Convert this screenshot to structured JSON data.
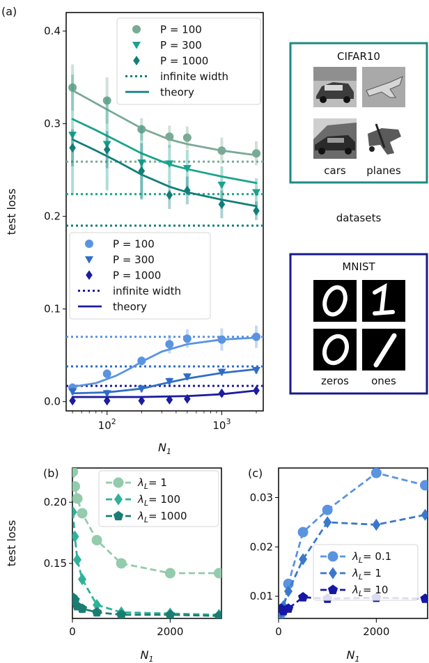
{
  "panel_a": {
    "label": "(a)",
    "chart_data": {
      "type": "line",
      "xlabel_base": "N",
      "xlabel_sub": "1",
      "ylabel": "test loss",
      "xscale": "log",
      "xlim": [
        44,
        2300
      ],
      "ylim": [
        -0.01,
        0.42
      ],
      "yticks": [
        "0.0",
        "0.1",
        "0.2",
        "0.3",
        "0.4"
      ],
      "ytick_values": [
        0,
        0.1,
        0.2,
        0.3,
        0.4
      ],
      "xticks": [
        {
          "value": 100,
          "base": "10",
          "exp": "2"
        },
        {
          "value": 1000,
          "base": "10",
          "exp": "3"
        }
      ],
      "x": [
        50,
        100,
        200,
        350,
        500,
        1000,
        2000
      ],
      "cifar_series": [
        {
          "name": "P = 100",
          "marker": "circle",
          "color": "#7aa995",
          "values": [
            0.339,
            0.325,
            0.294,
            0.286,
            0.285,
            0.271,
            0.268
          ],
          "err": [
            0.025,
            0.025,
            0.012,
            0.012,
            0.012,
            0.014,
            0.013
          ]
        },
        {
          "name": "P = 300",
          "marker": "triangle-down",
          "color": "#1aa38c",
          "values": [
            0.288,
            0.278,
            0.258,
            0.257,
            0.252,
            0.234,
            0.226
          ],
          "err": [
            0.065,
            0.05,
            0.04,
            0.02,
            0.02,
            0.02,
            0.015
          ]
        },
        {
          "name": "P = 1000",
          "marker": "diamond",
          "color": "#117e7a",
          "values": [
            0.274,
            0.272,
            0.249,
            0.223,
            0.228,
            0.213,
            0.206
          ],
          "err": [
            0.02,
            0.02,
            0.03,
            0.015,
            0.015,
            0.015,
            0.01
          ]
        }
      ],
      "cifar_infinite": [
        0.259,
        0.224,
        0.19
      ],
      "cifar_theory": [
        {
          "x": [
            50,
            80,
            120,
            200,
            350,
            500,
            1000,
            2000
          ],
          "y": [
            0.336,
            0.322,
            0.31,
            0.295,
            0.283,
            0.278,
            0.271,
            0.266
          ]
        },
        {
          "x": [
            50,
            80,
            120,
            200,
            350,
            500,
            1000,
            2000
          ],
          "y": [
            0.305,
            0.293,
            0.282,
            0.268,
            0.256,
            0.251,
            0.243,
            0.236
          ]
        },
        {
          "x": [
            50,
            80,
            120,
            200,
            350,
            500,
            1000,
            2000
          ],
          "y": [
            0.283,
            0.271,
            0.26,
            0.245,
            0.232,
            0.226,
            0.218,
            0.211
          ]
        }
      ],
      "mnist_series": [
        {
          "name": "P = 100",
          "marker": "circle",
          "color": "#5a94e0",
          "values": [
            0.015,
            0.03,
            0.044,
            0.062,
            0.068,
            0.067,
            0.07
          ],
          "err": [
            0.005,
            0.005,
            0.005,
            0.01,
            0.01,
            0.012,
            0.012
          ]
        },
        {
          "name": "P = 300",
          "marker": "triangle-down",
          "color": "#2f6dc6",
          "values": [
            0.011,
            0.009,
            0.014,
            0.022,
            0.027,
            0.032,
            0.034
          ],
          "err": [
            0.004,
            0.004,
            0.004,
            0.004,
            0.004,
            0.004,
            0.004
          ]
        },
        {
          "name": "P = 1000",
          "marker": "diamond",
          "color": "#1c1c9e",
          "values": [
            0.001,
            0.001,
            0.001,
            0.002,
            0.003,
            0.009,
            0.012
          ],
          "err": [
            0.003,
            0.003,
            0.003,
            0.003,
            0.003,
            0.004,
            0.004
          ]
        }
      ],
      "mnist_infinite": [
        0.07,
        0.038,
        0.017
      ],
      "mnist_theory": [
        {
          "x": [
            50,
            80,
            120,
            160,
            200,
            300,
            500,
            1000,
            2000
          ],
          "y": [
            0.016,
            0.02,
            0.028,
            0.036,
            0.043,
            0.054,
            0.062,
            0.067,
            0.069
          ]
        },
        {
          "x": [
            50,
            100,
            200,
            300,
            500,
            1000,
            2000
          ],
          "y": [
            0.009,
            0.01,
            0.014,
            0.019,
            0.025,
            0.031,
            0.035
          ]
        },
        {
          "x": [
            50,
            100,
            200,
            500,
            1000,
            2000
          ],
          "y": [
            0.005,
            0.005,
            0.005,
            0.006,
            0.008,
            0.012
          ]
        }
      ],
      "legend_cifar": {
        "items": [
          "P = 100",
          "P = 300",
          "P = 1000",
          "infinite width",
          "theory"
        ],
        "placement": "top-right"
      },
      "legend_mnist": {
        "items": [
          "P = 100",
          "P = 300",
          "P = 1000",
          "infinite width",
          "theory"
        ],
        "placement": "center-left"
      }
    }
  },
  "datasets": {
    "label": "datasets",
    "cifar": {
      "title": "CIFAR10",
      "label_left": "cars",
      "label_right": "planes",
      "border_color": "#1e8a80"
    },
    "mnist": {
      "title": "MNIST",
      "label_left": "zeros",
      "label_right": "ones",
      "border_color": "#1a1a8c"
    }
  },
  "panel_b": {
    "label": "(b)",
    "chart_data": {
      "type": "line",
      "xlabel_base": "N",
      "xlabel_sub": "1",
      "ylabel": "test loss",
      "xlim": [
        0,
        3050
      ],
      "ylim": [
        0.105,
        0.228
      ],
      "xticks": [
        "0",
        "2000"
      ],
      "xtick_values": [
        0,
        2000
      ],
      "yticks": [
        "0.15",
        "0.20"
      ],
      "ytick_values": [
        0.15,
        0.2
      ],
      "series": [
        {
          "name": "λL= 1",
          "lam": "1",
          "marker": "circle",
          "color": "#93cbac",
          "x": [
            10,
            50,
            100,
            200,
            500,
            1000,
            2000,
            3000
          ],
          "values": [
            0.225,
            0.213,
            0.203,
            0.191,
            0.169,
            0.15,
            0.142,
            0.142
          ]
        },
        {
          "name": "λL= 100",
          "lam": "100",
          "marker": "diamond",
          "color": "#2fb299",
          "x": [
            10,
            50,
            100,
            200,
            500,
            1000,
            2000,
            3000
          ],
          "values": [
            0.192,
            0.172,
            0.153,
            0.137,
            0.116,
            0.11,
            0.109,
            0.108
          ]
        },
        {
          "name": "λL= 1000",
          "lam": "1000",
          "marker": "pentagon",
          "color": "#1a7d72",
          "x": [
            10,
            50,
            100,
            200,
            500,
            1000,
            2000,
            3000
          ],
          "values": [
            0.122,
            0.12,
            0.115,
            0.113,
            0.11,
            0.108,
            0.108,
            0.107
          ]
        }
      ],
      "legend_placement": "top-right"
    }
  },
  "panel_c": {
    "label": "(c)",
    "chart_data": {
      "type": "line",
      "xlabel_base": "N",
      "xlabel_sub": "1",
      "xlim": [
        0,
        3050
      ],
      "ylim": [
        0.0055,
        0.036
      ],
      "xticks": [
        "0",
        "2000"
      ],
      "xtick_values": [
        0,
        2000
      ],
      "yticks": [
        "0.01",
        "0.02",
        "0.03"
      ],
      "ytick_values": [
        0.01,
        0.02,
        0.03
      ],
      "series": [
        {
          "name": "λL= 0.1",
          "lam": "0.1",
          "marker": "circle",
          "color": "#5a94e0",
          "x": [
            50,
            100,
            200,
            500,
            1000,
            2000,
            3000
          ],
          "values": [
            0.0065,
            0.0075,
            0.0125,
            0.023,
            0.0275,
            0.035,
            0.0325
          ]
        },
        {
          "name": "λL= 1",
          "lam": "1",
          "marker": "diamond",
          "color": "#3a78cc",
          "x": [
            50,
            100,
            200,
            500,
            1000,
            2000,
            3000
          ],
          "values": [
            0.0065,
            0.008,
            0.011,
            0.0175,
            0.025,
            0.0245,
            0.0265
          ]
        },
        {
          "name": "λL= 10",
          "lam": "10",
          "marker": "pentagon",
          "color": "#1717a3",
          "x": [
            50,
            100,
            200,
            500,
            1000,
            2000,
            3000
          ],
          "values": [
            0.0075,
            0.007,
            0.0075,
            0.0098,
            0.0095,
            0.0097,
            0.0095
          ]
        }
      ],
      "legend_placement": "center-right"
    }
  }
}
